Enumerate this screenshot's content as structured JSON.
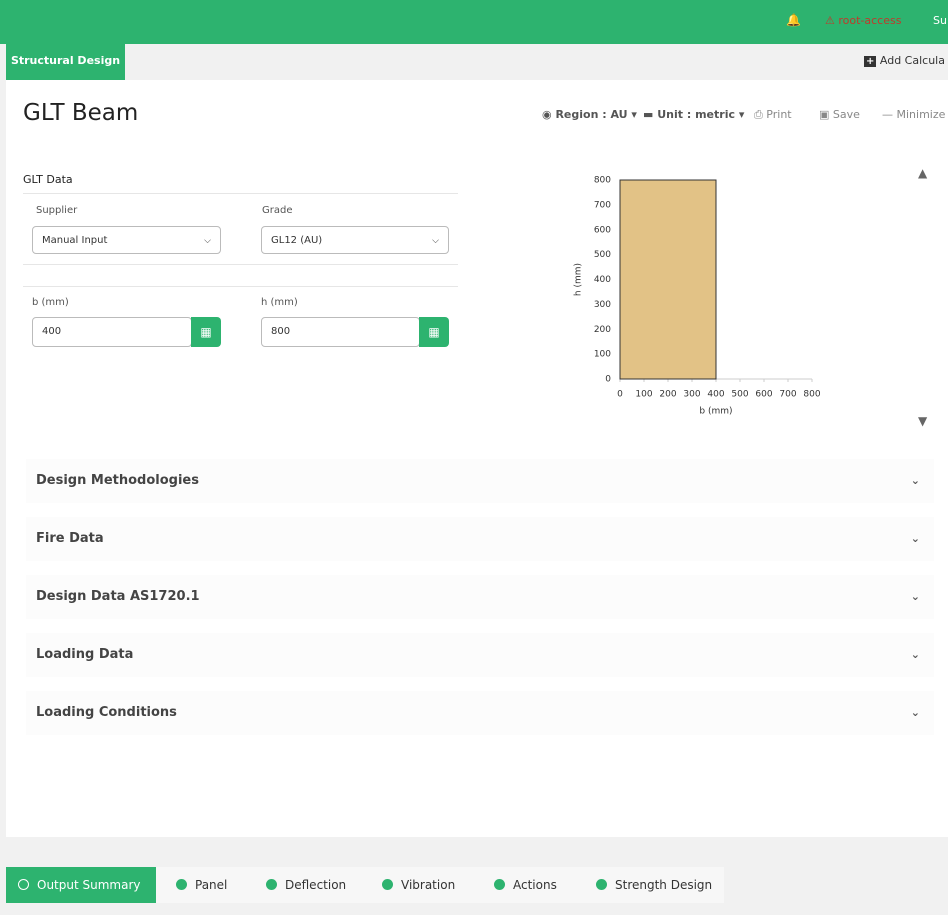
{
  "top_bar": {
    "alert": "root-access",
    "user": "Su"
  },
  "tabs": {
    "active": "Structural Design",
    "add": "Add Calcula"
  },
  "header": {
    "title": "GLT Beam",
    "toolbar": [
      "Region : AU",
      "Unit : metric",
      "Print",
      "Save",
      "Minimize"
    ]
  },
  "glt_data": {
    "title": "GLT Data",
    "fields": [
      {
        "label": "Supplier",
        "value": "Manual Input"
      },
      {
        "label": "Grade",
        "value": "GL12 (AU)"
      },
      {
        "label": "b (mm)",
        "value": 400
      },
      {
        "label": "h (mm)",
        "value": 800
      }
    ]
  },
  "section_chart": {
    "x_label": "b (mm)",
    "y_label": "h (mm)",
    "xlim": [
      0,
      800
    ],
    "ylim": [
      0,
      800
    ],
    "xticks": [
      0,
      100,
      200,
      300,
      400,
      500,
      600,
      700,
      800
    ],
    "yticks": [
      0,
      100,
      200,
      300,
      400,
      500,
      600,
      700,
      800
    ],
    "color": "#e2c286"
  },
  "sections": [
    "Design Methodologies",
    "Fire Data",
    "Design Data AS1720.1",
    "Loading Data",
    "Loading Conditions"
  ],
  "output_tabs": [
    "Output Summary",
    "Panel",
    "Deflection",
    "Vibration",
    "Actions",
    "Strength Design"
  ]
}
